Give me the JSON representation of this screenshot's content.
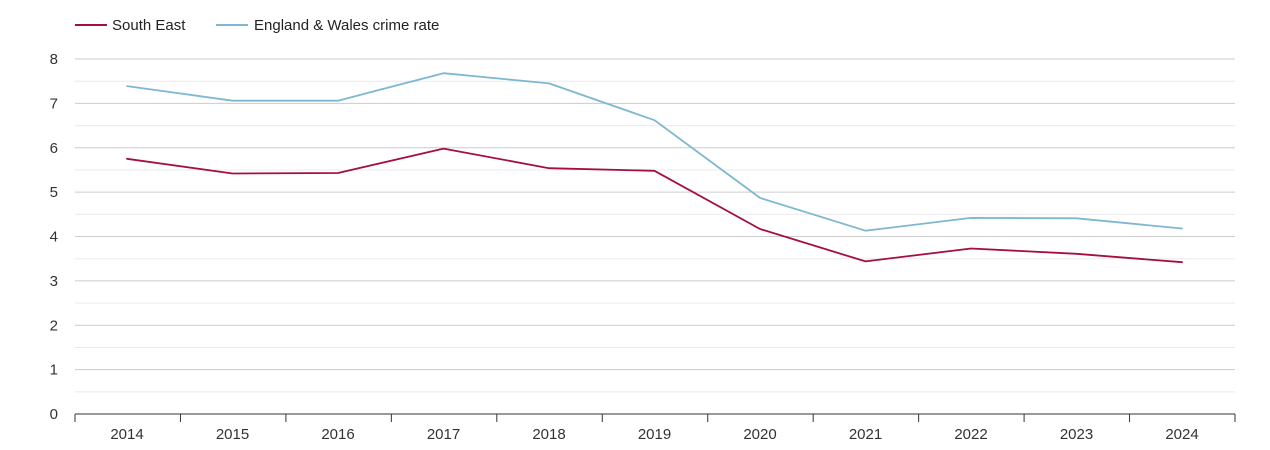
{
  "chart_data": {
    "type": "line",
    "title": "",
    "xlabel": "",
    "ylabel": "",
    "categories": [
      "2014",
      "2015",
      "2016",
      "2017",
      "2018",
      "2019",
      "2020",
      "2021",
      "2022",
      "2023",
      "2024"
    ],
    "ylim": [
      0,
      8
    ],
    "y_ticks": [
      "0",
      "1",
      "2",
      "3",
      "4",
      "5",
      "6",
      "7",
      "8"
    ],
    "grid": true,
    "legend_position": "top-left",
    "series": [
      {
        "name": "South East",
        "color": "#a50f3c",
        "values": [
          5.75,
          5.42,
          5.43,
          5.98,
          5.54,
          5.48,
          4.17,
          3.44,
          3.73,
          3.61,
          3.42
        ]
      },
      {
        "name": "England & Wales crime rate",
        "color": "#7fb7d2",
        "values": [
          7.39,
          7.06,
          7.06,
          7.68,
          7.45,
          6.62,
          4.87,
          4.13,
          4.42,
          4.41,
          4.18
        ]
      }
    ]
  }
}
